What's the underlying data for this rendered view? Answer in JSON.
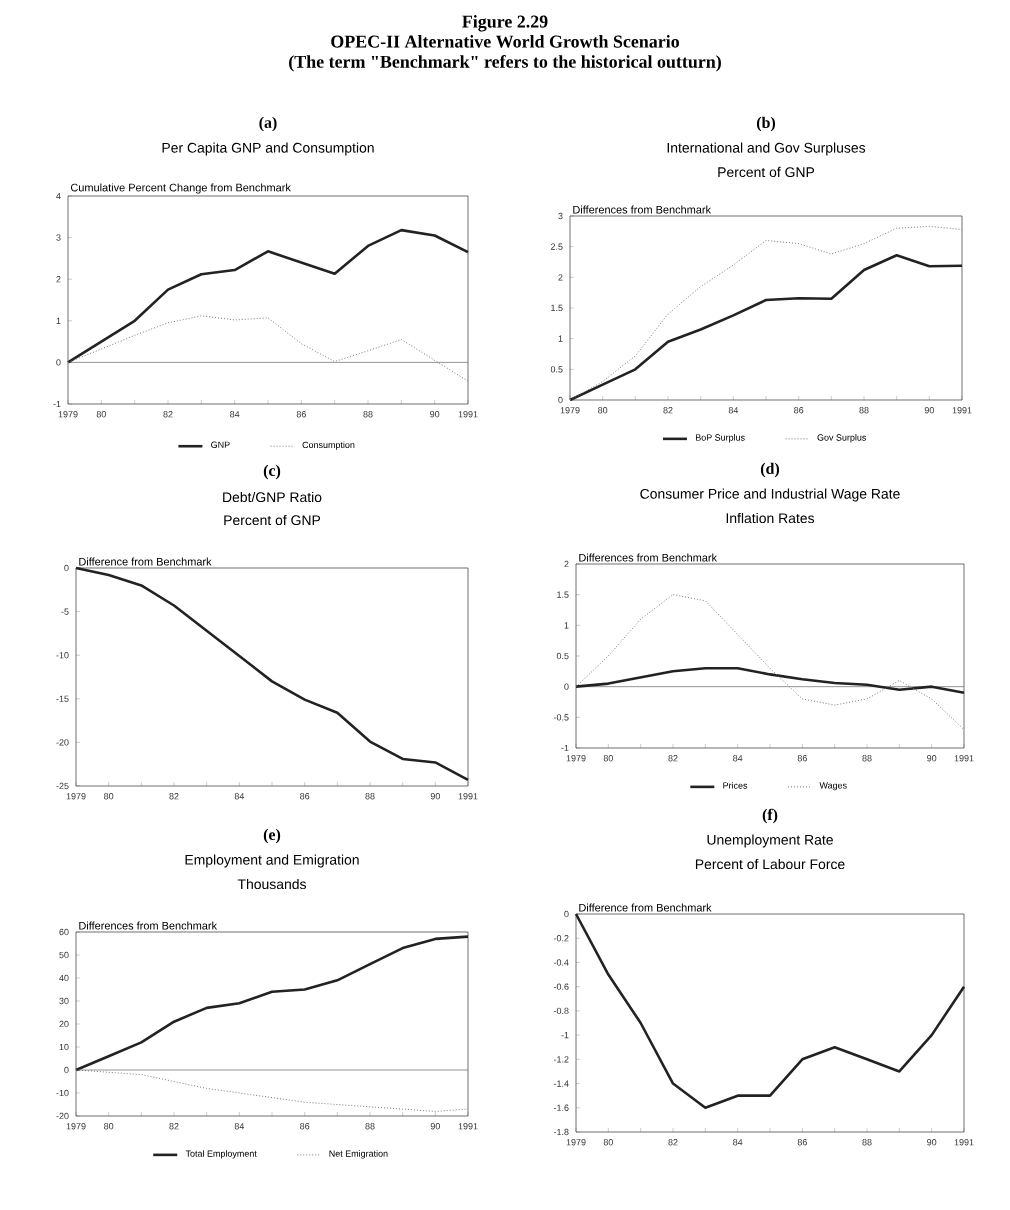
{
  "chart_data": [
    {
      "type": "other",
      "title": "Figure 2.29",
      "subtitle": "OPEC-II Alternative World Growth Scenario",
      "annotations": [
        "(The term \"Benchmark\" refers to the historical outturn)"
      ]
    },
    {
      "type": "line",
      "title": "(a)",
      "subtitle": "Per Capita GNP and Consumption",
      "ylabel": "Cumulative Percent Change from Benchmark",
      "x": [
        1979,
        1980,
        1981,
        1982,
        1983,
        1984,
        1985,
        1986,
        1987,
        1988,
        1989,
        1990,
        1991
      ],
      "series": [
        {
          "name": "GNP",
          "color": "#222222",
          "line_style": "solid",
          "values": [
            0,
            0.5,
            1.0,
            1.75,
            2.12,
            2.22,
            2.67,
            2.4,
            2.13,
            2.8,
            3.18,
            3.05,
            2.65
          ]
        },
        {
          "name": "Consumption",
          "color": "#777777",
          "line_style": "dotted",
          "values": [
            0,
            0.32,
            0.65,
            0.95,
            1.12,
            1.02,
            1.07,
            0.45,
            0.02,
            0.28,
            0.55,
            0.05,
            -0.45
          ]
        }
      ],
      "xlim": [
        1979,
        1991
      ],
      "xticks": [
        {
          "value": 1979,
          "label": "1979"
        },
        {
          "value": 1980,
          "label": "80"
        },
        {
          "value": 1981,
          "label": null
        },
        {
          "value": 1982,
          "label": "82"
        },
        {
          "value": 1983,
          "label": null
        },
        {
          "value": 1984,
          "label": "84"
        },
        {
          "value": 1985,
          "label": null
        },
        {
          "value": 1986,
          "label": "86"
        },
        {
          "value": 1987,
          "label": null
        },
        {
          "value": 1988,
          "label": "88"
        },
        {
          "value": 1989,
          "label": null
        },
        {
          "value": 1990,
          "label": "90"
        },
        {
          "value": 1991,
          "label": "1991"
        }
      ],
      "ylim": [
        -1,
        4
      ],
      "yticks": [
        -1,
        0,
        1,
        2,
        3,
        4
      ],
      "ref_lines": [
        {
          "axis": "y",
          "value": 0
        }
      ],
      "legend": "bottom"
    },
    {
      "type": "line",
      "title": "(b)",
      "subtitle": "International and Gov Surpluses",
      "annotations": [
        "Percent of GNP"
      ],
      "ylabel": "Differences from Benchmark",
      "x": [
        1979,
        1980,
        1981,
        1982,
        1983,
        1984,
        1985,
        1986,
        1987,
        1988,
        1989,
        1990,
        1991
      ],
      "series": [
        {
          "name": "BoP Surplus",
          "color": "#222222",
          "line_style": "solid",
          "values": [
            0,
            0.25,
            0.5,
            0.95,
            1.15,
            1.38,
            1.63,
            1.66,
            1.65,
            2.12,
            2.36,
            2.18,
            2.19
          ]
        },
        {
          "name": "Gov Surplus",
          "color": "#777777",
          "line_style": "dotted",
          "values": [
            0,
            0.3,
            0.72,
            1.4,
            1.85,
            2.2,
            2.6,
            2.55,
            2.38,
            2.55,
            2.8,
            2.83,
            2.78
          ]
        }
      ],
      "xlim": [
        1979,
        1991
      ],
      "xticks": [
        {
          "value": 1979,
          "label": "1979"
        },
        {
          "value": 1980,
          "label": "80"
        },
        {
          "value": 1981,
          "label": null
        },
        {
          "value": 1982,
          "label": "82"
        },
        {
          "value": 1983,
          "label": null
        },
        {
          "value": 1984,
          "label": "84"
        },
        {
          "value": 1985,
          "label": null
        },
        {
          "value": 1986,
          "label": "86"
        },
        {
          "value": 1987,
          "label": null
        },
        {
          "value": 1988,
          "label": "88"
        },
        {
          "value": 1989,
          "label": null
        },
        {
          "value": 1990,
          "label": "90"
        },
        {
          "value": 1991,
          "label": "1991"
        }
      ],
      "ylim": [
        0,
        3
      ],
      "yticks": [
        0,
        0.5,
        1,
        1.5,
        2,
        2.5,
        3
      ],
      "legend": "bottom"
    },
    {
      "type": "line",
      "title": "(c)",
      "subtitle": "Debt/GNP Ratio",
      "annotations": [
        "Percent of GNP"
      ],
      "ylabel": "Difference from Benchmark",
      "x": [
        1979,
        1980,
        1981,
        1982,
        1983,
        1984,
        1985,
        1986,
        1987,
        1988,
        1989,
        1990,
        1991
      ],
      "series": [
        {
          "color": "#222222",
          "line_style": "solid",
          "values": [
            0,
            -0.8,
            -2,
            -4.3,
            -7.2,
            -10.1,
            -13,
            -15.1,
            -16.6,
            -19.9,
            -21.9,
            -22.3,
            -24.3
          ]
        }
      ],
      "xlim": [
        1979,
        1991
      ],
      "xticks": [
        {
          "value": 1979,
          "label": "1979"
        },
        {
          "value": 1980,
          "label": "80"
        },
        {
          "value": 1981,
          "label": null
        },
        {
          "value": 1982,
          "label": "82"
        },
        {
          "value": 1983,
          "label": null
        },
        {
          "value": 1984,
          "label": "84"
        },
        {
          "value": 1985,
          "label": null
        },
        {
          "value": 1986,
          "label": "86"
        },
        {
          "value": 1987,
          "label": null
        },
        {
          "value": 1988,
          "label": "88"
        },
        {
          "value": 1989,
          "label": null
        },
        {
          "value": 1990,
          "label": "90"
        },
        {
          "value": 1991,
          "label": "1991"
        }
      ],
      "ylim": [
        -25,
        0
      ],
      "yticks": [
        -25,
        -20,
        -15,
        -10,
        -5,
        0
      ]
    },
    {
      "type": "line",
      "title": "(d)",
      "subtitle": "Consumer Price and Industrial Wage Rate",
      "annotations": [
        "Inflation Rates"
      ],
      "ylabel": "Differences from Benchmark",
      "x": [
        1979,
        1980,
        1981,
        1982,
        1983,
        1984,
        1985,
        1986,
        1987,
        1988,
        1989,
        1990,
        1991
      ],
      "series": [
        {
          "name": "Prices",
          "color": "#222222",
          "line_style": "solid",
          "values": [
            0,
            0.05,
            0.15,
            0.25,
            0.3,
            0.3,
            0.2,
            0.12,
            0.06,
            0.03,
            -0.05,
            0,
            -0.1
          ]
        },
        {
          "name": "Wages",
          "color": "#777777",
          "line_style": "dotted",
          "values": [
            0,
            0.5,
            1.1,
            1.5,
            1.4,
            0.85,
            0.3,
            -0.2,
            -0.3,
            -0.2,
            0.1,
            -0.2,
            -0.7
          ]
        }
      ],
      "xlim": [
        1979,
        1991
      ],
      "xticks": [
        {
          "value": 1979,
          "label": "1979"
        },
        {
          "value": 1980,
          "label": "80"
        },
        {
          "value": 1981,
          "label": null
        },
        {
          "value": 1982,
          "label": "82"
        },
        {
          "value": 1983,
          "label": null
        },
        {
          "value": 1984,
          "label": "84"
        },
        {
          "value": 1985,
          "label": null
        },
        {
          "value": 1986,
          "label": "86"
        },
        {
          "value": 1987,
          "label": null
        },
        {
          "value": 1988,
          "label": "88"
        },
        {
          "value": 1989,
          "label": null
        },
        {
          "value": 1990,
          "label": "90"
        },
        {
          "value": 1991,
          "label": "1991"
        }
      ],
      "ylim": [
        -1,
        2
      ],
      "yticks": [
        -1,
        -0.5,
        0,
        0.5,
        1,
        1.5,
        2
      ],
      "ref_lines": [
        {
          "axis": "y",
          "value": 0
        }
      ],
      "legend": "bottom"
    },
    {
      "type": "line",
      "title": "(e)",
      "subtitle": "Employment and Emigration",
      "annotations": [
        "Thousands"
      ],
      "ylabel": "Differences from Benchmark",
      "x": [
        1979,
        1980,
        1981,
        1982,
        1983,
        1984,
        1985,
        1986,
        1987,
        1988,
        1989,
        1990,
        1991
      ],
      "series": [
        {
          "name": "Total Employment",
          "color": "#222222",
          "line_style": "solid",
          "values": [
            0,
            6,
            12,
            21,
            27,
            29,
            34,
            35,
            39,
            46,
            53,
            57,
            58
          ]
        },
        {
          "name": "Net Emigration",
          "color": "#777777",
          "line_style": "dotted",
          "values": [
            0,
            -1,
            -2,
            -5,
            -8,
            -10,
            -12,
            -14,
            -15,
            -16,
            -17,
            -18,
            -17
          ]
        }
      ],
      "xlim": [
        1979,
        1991
      ],
      "xticks": [
        {
          "value": 1979,
          "label": "1979"
        },
        {
          "value": 1980,
          "label": "80"
        },
        {
          "value": 1981,
          "label": null
        },
        {
          "value": 1982,
          "label": "82"
        },
        {
          "value": 1983,
          "label": null
        },
        {
          "value": 1984,
          "label": "84"
        },
        {
          "value": 1985,
          "label": null
        },
        {
          "value": 1986,
          "label": "86"
        },
        {
          "value": 1987,
          "label": null
        },
        {
          "value": 1988,
          "label": "88"
        },
        {
          "value": 1989,
          "label": null
        },
        {
          "value": 1990,
          "label": "90"
        },
        {
          "value": 1991,
          "label": "1991"
        }
      ],
      "ylim": [
        -20,
        60
      ],
      "yticks": [
        -20,
        -10,
        0,
        10,
        20,
        30,
        40,
        50,
        60
      ],
      "ref_lines": [
        {
          "axis": "y",
          "value": 0
        }
      ],
      "legend": "bottom"
    },
    {
      "type": "line",
      "title": "(f)",
      "subtitle": "Unemployment Rate",
      "annotations": [
        "Percent of Labour Force"
      ],
      "ylabel": "Difference from Benchmark",
      "x": [
        1979,
        1980,
        1981,
        1982,
        1983,
        1984,
        1985,
        1986,
        1987,
        1988,
        1989,
        1990,
        1991
      ],
      "series": [
        {
          "color": "#222222",
          "line_style": "solid",
          "values": [
            0,
            -0.5,
            -0.9,
            -1.4,
            -1.6,
            -1.5,
            -1.5,
            -1.2,
            -1.1,
            -1.2,
            -1.3,
            -1.0,
            -0.6
          ]
        }
      ],
      "xlim": [
        1979,
        1991
      ],
      "xticks": [
        {
          "value": 1979,
          "label": "1979"
        },
        {
          "value": 1980,
          "label": "80"
        },
        {
          "value": 1981,
          "label": null
        },
        {
          "value": 1982,
          "label": "82"
        },
        {
          "value": 1983,
          "label": null
        },
        {
          "value": 1984,
          "label": "84"
        },
        {
          "value": 1985,
          "label": null
        },
        {
          "value": 1986,
          "label": "86"
        },
        {
          "value": 1987,
          "label": null
        },
        {
          "value": 1988,
          "label": "88"
        },
        {
          "value": 1989,
          "label": null
        },
        {
          "value": 1990,
          "label": "90"
        },
        {
          "value": 1991,
          "label": "1991"
        }
      ],
      "ylim": [
        -1.8,
        0
      ],
      "yticks": [
        -1.8,
        -1.6,
        -1.4,
        -1.2,
        -1,
        -0.8,
        -0.6,
        -0.4,
        -0.2,
        0
      ]
    }
  ]
}
